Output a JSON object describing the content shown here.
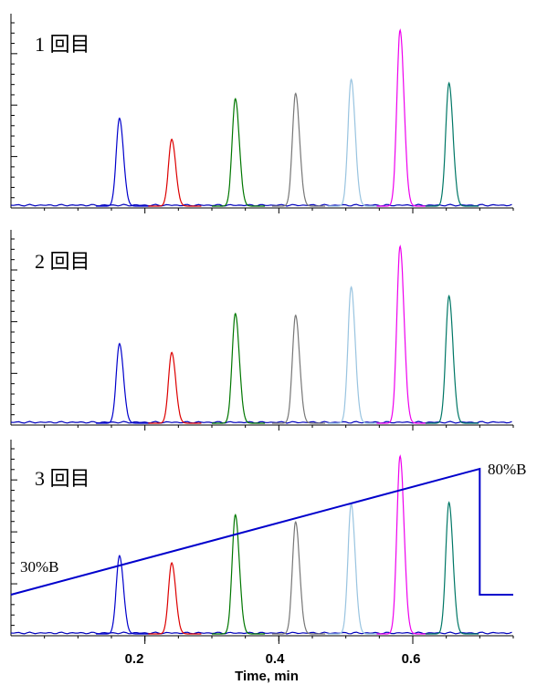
{
  "chart_data": {
    "type": "line",
    "xlabel": "Time, min",
    "xlim": [
      0.0,
      0.75
    ],
    "xticks": [
      0.2,
      0.4,
      0.6
    ],
    "xtick_labels": [
      "0.2",
      "0.4",
      "0.6"
    ],
    "peak_colors": [
      "#0000cc",
      "#dd0000",
      "#007700",
      "#777777",
      "#99c4e0",
      "#ee00ee",
      "#007766"
    ],
    "baseline_color": "#0000bb",
    "panels": [
      {
        "label": "1 回目",
        "peaks": [
          {
            "rt": 0.162,
            "height": 0.5,
            "color": "#0000cc"
          },
          {
            "rt": 0.24,
            "height": 0.38,
            "color": "#dd0000"
          },
          {
            "rt": 0.335,
            "height": 0.61,
            "color": "#007700"
          },
          {
            "rt": 0.425,
            "height": 0.64,
            "color": "#777777"
          },
          {
            "rt": 0.508,
            "height": 0.72,
            "color": "#99c4e0"
          },
          {
            "rt": 0.581,
            "height": 1.0,
            "color": "#ee00ee"
          },
          {
            "rt": 0.654,
            "height": 0.7,
            "color": "#007766"
          }
        ]
      },
      {
        "label": "2 回目",
        "peaks": [
          {
            "rt": 0.162,
            "height": 0.45,
            "color": "#0000cc"
          },
          {
            "rt": 0.24,
            "height": 0.4,
            "color": "#dd0000"
          },
          {
            "rt": 0.335,
            "height": 0.62,
            "color": "#007700"
          },
          {
            "rt": 0.425,
            "height": 0.61,
            "color": "#777777"
          },
          {
            "rt": 0.508,
            "height": 0.77,
            "color": "#99c4e0"
          },
          {
            "rt": 0.581,
            "height": 1.0,
            "color": "#ee00ee"
          },
          {
            "rt": 0.654,
            "height": 0.72,
            "color": "#007766"
          }
        ]
      },
      {
        "label": "3 回目",
        "peaks": [
          {
            "rt": 0.162,
            "height": 0.44,
            "color": "#0000cc"
          },
          {
            "rt": 0.24,
            "height": 0.4,
            "color": "#dd0000"
          },
          {
            "rt": 0.335,
            "height": 0.67,
            "color": "#007700"
          },
          {
            "rt": 0.425,
            "height": 0.63,
            "color": "#777777"
          },
          {
            "rt": 0.508,
            "height": 0.73,
            "color": "#99c4e0"
          },
          {
            "rt": 0.581,
            "height": 1.0,
            "color": "#ee00ee"
          },
          {
            "rt": 0.654,
            "height": 0.74,
            "color": "#007766"
          }
        ],
        "gradient": {
          "color": "#0000cc",
          "points": [
            [
              0.0,
              30
            ],
            [
              0.7,
              80
            ],
            [
              0.7,
              30
            ],
            [
              0.75,
              30
            ]
          ],
          "start_label": "30%B",
          "end_label": "80%B"
        }
      }
    ]
  }
}
